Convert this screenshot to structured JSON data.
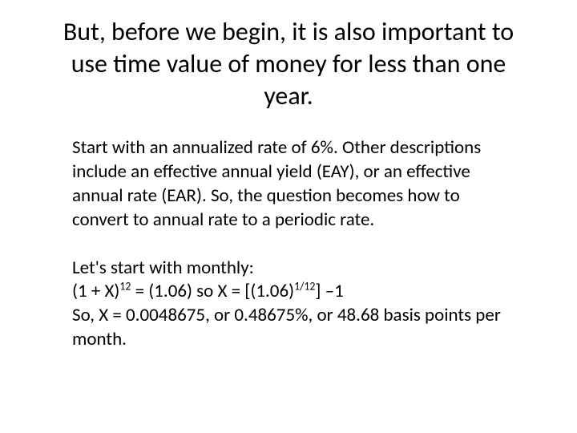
{
  "slide": {
    "title": "But, before we begin, it is also important to use time value of money for less than one year.",
    "paragraph1": "Start with an annualized rate of 6%.  Other descriptions include an effective annual yield  (EAY), or an effective annual rate (EAR).  So, the question becomes how to convert to annual rate to a periodic rate.",
    "formula": {
      "line1": "Let's start with monthly:",
      "line2_pre": "(1 + X)",
      "line2_sup1": "12",
      "line2_mid": " = (1.06) so X = [(1.06)",
      "line2_sup2": "1/12",
      "line2_post": "] –1",
      "line3": "So, X = 0.0048675, or 0.48675%, or 48.68 basis points per month."
    },
    "background_color": "#ffffff",
    "text_color": "#000000",
    "title_fontsize": 32,
    "body_fontsize": 23
  }
}
